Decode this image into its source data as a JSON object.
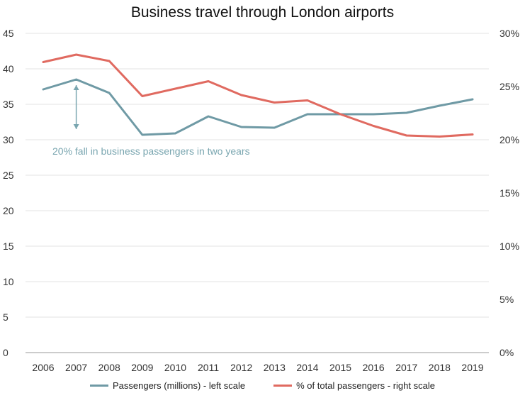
{
  "chart_data": {
    "type": "line",
    "title": "Business travel through London airports",
    "categories": [
      "2006",
      "2007",
      "2008",
      "2009",
      "2010",
      "2011",
      "2012",
      "2013",
      "2014",
      "2015",
      "2016",
      "2017",
      "2018",
      "2019"
    ],
    "series": [
      {
        "name": "Passengers (millions) - left scale",
        "axis": "left",
        "color": "#6f9aa5",
        "values": [
          37.1,
          38.5,
          36.6,
          30.7,
          30.9,
          33.3,
          31.8,
          31.7,
          33.6,
          33.6,
          33.6,
          33.8,
          34.8,
          35.7
        ]
      },
      {
        "name": "% of total passengers - right scale",
        "axis": "right",
        "color": "#e06a60",
        "values": [
          27.3,
          28.0,
          27.4,
          24.1,
          24.8,
          25.5,
          24.2,
          23.5,
          23.7,
          22.4,
          21.3,
          20.4,
          20.3,
          20.5
        ]
      }
    ],
    "left_axis": {
      "ylim": [
        0,
        45
      ],
      "ticks": [
        "0",
        "5",
        "10",
        "15",
        "20",
        "25",
        "30",
        "35",
        "40",
        "45"
      ]
    },
    "right_axis": {
      "ylim": [
        0,
        30
      ],
      "ticks": [
        "0%",
        "5%",
        "10%",
        "15%",
        "20%",
        "25%",
        "30%"
      ]
    },
    "grid": true,
    "legend_position": "bottom",
    "annotation": {
      "text": "20% fall in business passengers in two years",
      "category": "2007",
      "from_value": 38.5,
      "to_value": 30.7,
      "color": "#7aa6b0"
    }
  }
}
